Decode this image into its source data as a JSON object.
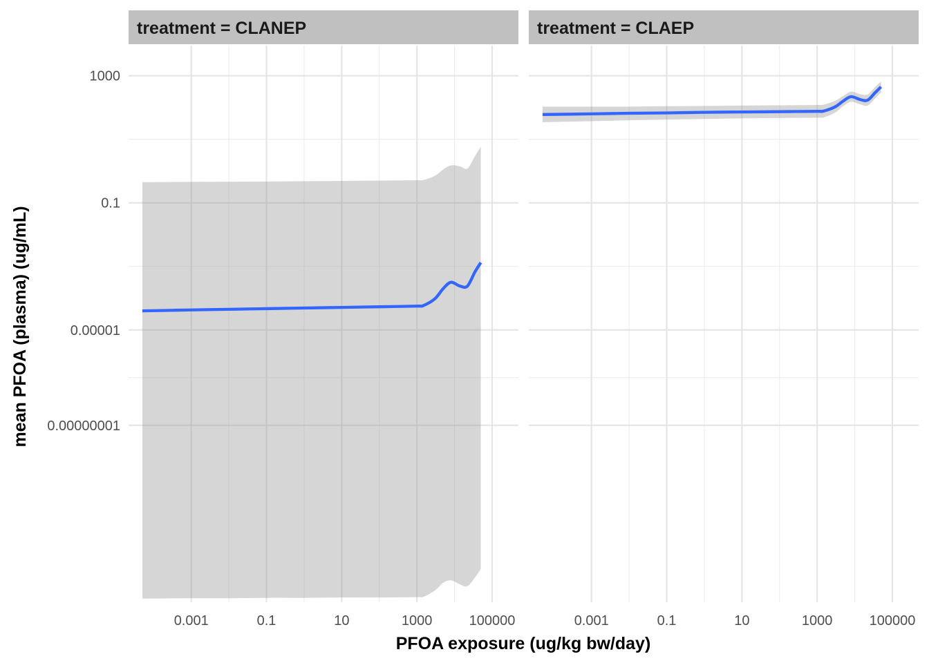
{
  "chart_data": {
    "type": "line",
    "title": "",
    "xlabel": "PFOA exposure (ug/kg bw/day)",
    "ylabel": "mean PFOA (plasma) (ug/mL)",
    "x_scale": "log10",
    "y_scale": "log10",
    "xlim": [
      2.15e-05,
      500000
    ],
    "ylim": [
      2.7e-14,
      8900
    ],
    "x_ticks": [
      0.001,
      0.1,
      10,
      1000,
      100000
    ],
    "x_tick_labels": [
      "0.001",
      "0.1",
      "10",
      "1000",
      "100000"
    ],
    "y_ticks": [
      1000,
      0.1,
      1e-05,
      1e-08
    ],
    "y_tick_labels": [
      "1000",
      "0.1",
      "0.00001",
      "0.00000001"
    ],
    "grid": true,
    "colors": {
      "line": "#3366FF",
      "ribbon": "#999999",
      "strip": "#C0C0C0",
      "grid": "#E5E5E5"
    },
    "facets": [
      {
        "label": "treatment = CLANEP",
        "series": [
          {
            "x": [
              5e-05,
              0.001,
              0.01,
              0.1,
              1,
              10,
              100,
              1000,
              1500,
              3000,
              5000,
              8000,
              14000,
              22000,
              35000,
              50000
            ],
            "y": [
              3.98e-05,
              4.27e-05,
              4.47e-05,
              4.68e-05,
              4.9e-05,
              5.13e-05,
              5.37e-05,
              5.62e-05,
              5.89e-05,
              9.55e-05,
              0.0002,
              0.000316,
              0.00024,
              0.00024,
              0.000676,
              0.00132
            ],
            "lower": [
              3.5e-14,
              3.6e-14,
              3.6e-14,
              3.7e-14,
              3.7e-14,
              3.8e-14,
              3.8e-14,
              3.9e-14,
              4e-14,
              6.3e-14,
              1.1e-13,
              1.32e-13,
              9.8e-14,
              8.7e-14,
              1.62e-13,
              3.02e-13
            ],
            "upper": [
              0.447,
              0.457,
              0.462,
              0.468,
              0.479,
              0.49,
              0.501,
              0.513,
              0.525,
              0.708,
              1.12,
              1.51,
              1.41,
              1.2,
              2.95,
              5.89
            ]
          }
        ]
      },
      {
        "label": "treatment = CLAEP",
        "series": [
          {
            "x": [
              5e-05,
              0.001,
              0.01,
              0.1,
              1,
              10,
              100,
              1000,
              1500,
              3000,
              5000,
              8000,
              14000,
              22000,
              35000,
              50000
            ],
            "y": [
              60.3,
              63.1,
              65.9,
              67.6,
              70.8,
              72.4,
              74.1,
              75.9,
              77.6,
              105,
              162,
              219,
              178,
              170,
              295,
              447
            ],
            "lower": [
              34.7,
              37.2,
              39.8,
              41.7,
              43.7,
              45.7,
              46.8,
              47.9,
              49.0,
              69.2,
              112,
              151,
              126,
              115,
              195,
              302
            ],
            "upper": [
              107,
              107,
              107,
              110,
              112,
              115,
              117,
              120,
              123,
              162,
              234,
              316,
              263,
              257,
              447,
              661
            ]
          }
        ]
      }
    ]
  }
}
